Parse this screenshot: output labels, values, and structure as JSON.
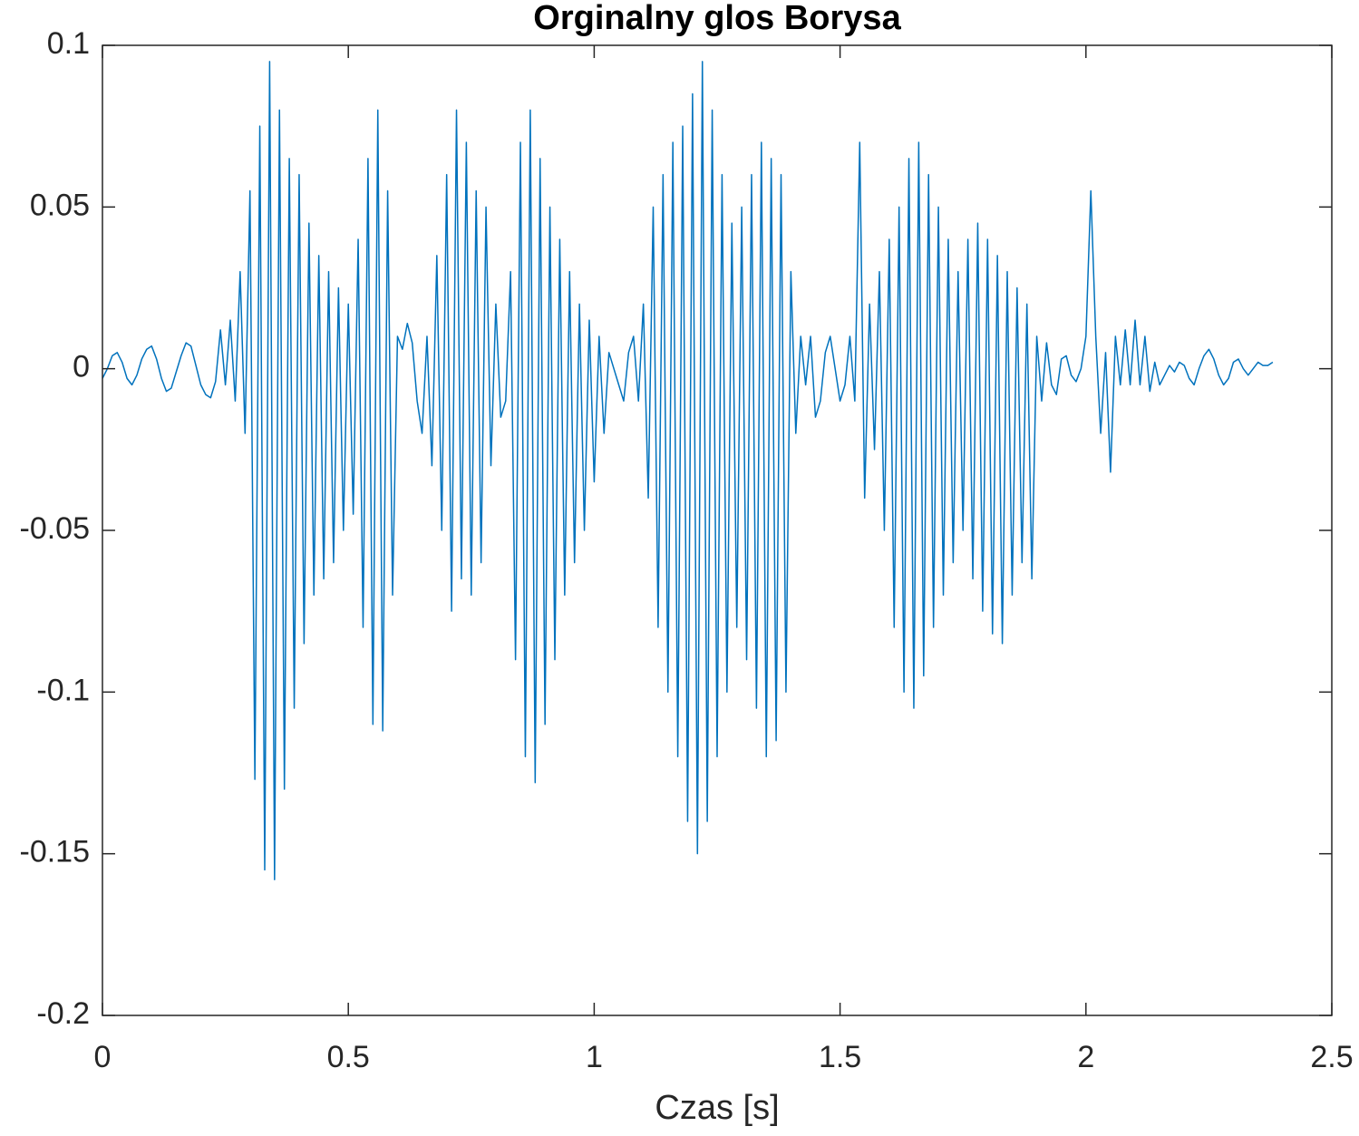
{
  "chart_data": {
    "type": "line",
    "title": "Orginalny glos Borysa",
    "x_label": "Czas [s]",
    "color": "#0072bd",
    "xlim": [
      0,
      2.5
    ],
    "xticks": [
      0,
      0.5,
      1,
      1.5,
      2,
      2.5
    ],
    "ylim": [
      -0.2,
      0.1
    ],
    "yticks": [
      -0.2,
      -0.15,
      -0.1,
      -0.05,
      0,
      0.05,
      0.1
    ],
    "x": [
      0,
      0.01,
      0.02,
      0.03,
      0.04,
      0.05,
      0.06,
      0.07,
      0.08,
      0.09,
      0.1,
      0.11,
      0.12,
      0.13,
      0.14,
      0.15,
      0.16,
      0.17,
      0.18,
      0.19,
      0.2,
      0.21,
      0.22,
      0.23,
      0.24,
      0.25,
      0.26,
      0.27,
      0.28,
      0.29,
      0.3,
      0.31,
      0.32,
      0.33,
      0.34,
      0.35,
      0.36,
      0.37,
      0.38,
      0.39,
      0.4,
      0.41,
      0.42,
      0.43,
      0.44,
      0.45,
      0.46,
      0.47,
      0.48,
      0.49,
      0.5,
      0.51,
      0.52,
      0.53,
      0.54,
      0.55,
      0.56,
      0.57,
      0.58,
      0.59,
      0.6,
      0.61,
      0.62,
      0.63,
      0.64,
      0.65,
      0.66,
      0.67,
      0.68,
      0.69,
      0.7,
      0.71,
      0.72,
      0.73,
      0.74,
      0.75,
      0.76,
      0.77,
      0.78,
      0.79,
      0.8,
      0.81,
      0.82,
      0.83,
      0.84,
      0.85,
      0.86,
      0.87,
      0.88,
      0.89,
      0.9,
      0.91,
      0.92,
      0.93,
      0.94,
      0.95,
      0.96,
      0.97,
      0.98,
      0.99,
      1,
      1.01,
      1.02,
      1.03,
      1.04,
      1.05,
      1.06,
      1.07,
      1.08,
      1.09,
      1.1,
      1.11,
      1.12,
      1.13,
      1.14,
      1.15,
      1.16,
      1.17,
      1.18,
      1.19,
      1.2,
      1.21,
      1.22,
      1.23,
      1.24,
      1.25,
      1.26,
      1.27,
      1.28,
      1.29,
      1.3,
      1.31,
      1.32,
      1.33,
      1.34,
      1.35,
      1.36,
      1.37,
      1.38,
      1.39,
      1.4,
      1.41,
      1.42,
      1.43,
      1.44,
      1.45,
      1.46,
      1.47,
      1.48,
      1.49,
      1.5,
      1.51,
      1.52,
      1.53,
      1.54,
      1.55,
      1.56,
      1.57,
      1.58,
      1.59,
      1.6,
      1.61,
      1.62,
      1.63,
      1.64,
      1.65,
      1.66,
      1.67,
      1.68,
      1.69,
      1.7,
      1.71,
      1.72,
      1.73,
      1.74,
      1.75,
      1.76,
      1.77,
      1.78,
      1.79,
      1.8,
      1.81,
      1.82,
      1.83,
      1.84,
      1.85,
      1.86,
      1.87,
      1.88,
      1.89,
      1.9,
      1.91,
      1.92,
      1.93,
      1.94,
      1.95,
      1.96,
      1.97,
      1.98,
      1.99,
      2,
      2.01,
      2.02,
      2.03,
      2.04,
      2.05,
      2.06,
      2.07,
      2.08,
      2.09,
      2.1,
      2.11,
      2.12,
      2.13,
      2.14,
      2.15,
      2.16,
      2.17,
      2.18,
      2.19,
      2.2,
      2.21,
      2.22,
      2.23,
      2.24,
      2.25,
      2.26,
      2.27,
      2.28,
      2.29,
      2.3,
      2.31,
      2.32,
      2.33,
      2.34,
      2.35,
      2.36,
      2.37,
      2.38
    ],
    "values": [
      -0.003,
      0,
      0.004,
      0.005,
      0.002,
      -0.003,
      -0.005,
      -0.002,
      0.003,
      0.006,
      0.007,
      0.003,
      -0.003,
      -0.007,
      -0.006,
      -0.001,
      0.004,
      0.008,
      0.007,
      0.001,
      -0.005,
      -0.008,
      -0.009,
      -0.004,
      0.012,
      -0.005,
      0.015,
      -0.01,
      0.03,
      -0.02,
      0.055,
      -0.127,
      0.075,
      -0.155,
      0.095,
      -0.158,
      0.08,
      -0.13,
      0.065,
      -0.105,
      0.06,
      -0.085,
      0.045,
      -0.07,
      0.035,
      -0.065,
      0.03,
      -0.06,
      0.025,
      -0.05,
      0.02,
      -0.045,
      0.04,
      -0.08,
      0.065,
      -0.11,
      0.08,
      -0.112,
      0.055,
      -0.07,
      0.01,
      0.006,
      0.014,
      0.008,
      -0.01,
      -0.02,
      0.01,
      -0.03,
      0.035,
      -0.05,
      0.06,
      -0.075,
      0.08,
      -0.065,
      0.07,
      -0.07,
      0.055,
      -0.06,
      0.05,
      -0.03,
      0.02,
      -0.015,
      -0.01,
      0.03,
      -0.09,
      0.07,
      -0.12,
      0.08,
      -0.128,
      0.065,
      -0.11,
      0.05,
      -0.09,
      0.04,
      -0.07,
      0.03,
      -0.06,
      0.02,
      -0.05,
      0.015,
      -0.035,
      0.01,
      -0.02,
      0.005,
      0,
      -0.005,
      -0.01,
      0.005,
      0.01,
      -0.01,
      0.02,
      -0.04,
      0.05,
      -0.08,
      0.06,
      -0.1,
      0.07,
      -0.12,
      0.075,
      -0.14,
      0.085,
      -0.15,
      0.095,
      -0.14,
      0.08,
      -0.12,
      0.06,
      -0.1,
      0.045,
      -0.08,
      0.05,
      -0.09,
      0.06,
      -0.105,
      0.07,
      -0.12,
      0.065,
      -0.115,
      0.06,
      -0.1,
      0.03,
      -0.02,
      0.01,
      -0.005,
      0.01,
      -0.015,
      -0.01,
      0.005,
      0.01,
      0,
      -0.01,
      -0.005,
      0.01,
      -0.01,
      0.07,
      -0.04,
      0.02,
      -0.025,
      0.03,
      -0.05,
      0.04,
      -0.08,
      0.05,
      -0.1,
      0.065,
      -0.105,
      0.07,
      -0.095,
      0.06,
      -0.08,
      0.05,
      -0.07,
      0.04,
      -0.06,
      0.03,
      -0.05,
      0.04,
      -0.065,
      0.045,
      -0.075,
      0.04,
      -0.082,
      0.035,
      -0.085,
      0.03,
      -0.07,
      0.025,
      -0.06,
      0.02,
      -0.065,
      0.01,
      -0.01,
      0.008,
      -0.005,
      -0.008,
      0.003,
      0.004,
      -0.002,
      -0.004,
      0,
      0.01,
      0.055,
      0.01,
      -0.02,
      0.005,
      -0.032,
      0.01,
      -0.005,
      0.012,
      -0.005,
      0.015,
      -0.005,
      0.01,
      -0.007,
      0.002,
      -0.005,
      -0.002,
      0.001,
      -0.001,
      0.002,
      0.001,
      -0.003,
      -0.005,
      0,
      0.004,
      0.006,
      0.003,
      -0.002,
      -0.005,
      -0.003,
      0.002,
      0.003,
      0,
      -0.002,
      0,
      0.002,
      0.001,
      0.001,
      0.002
    ]
  }
}
